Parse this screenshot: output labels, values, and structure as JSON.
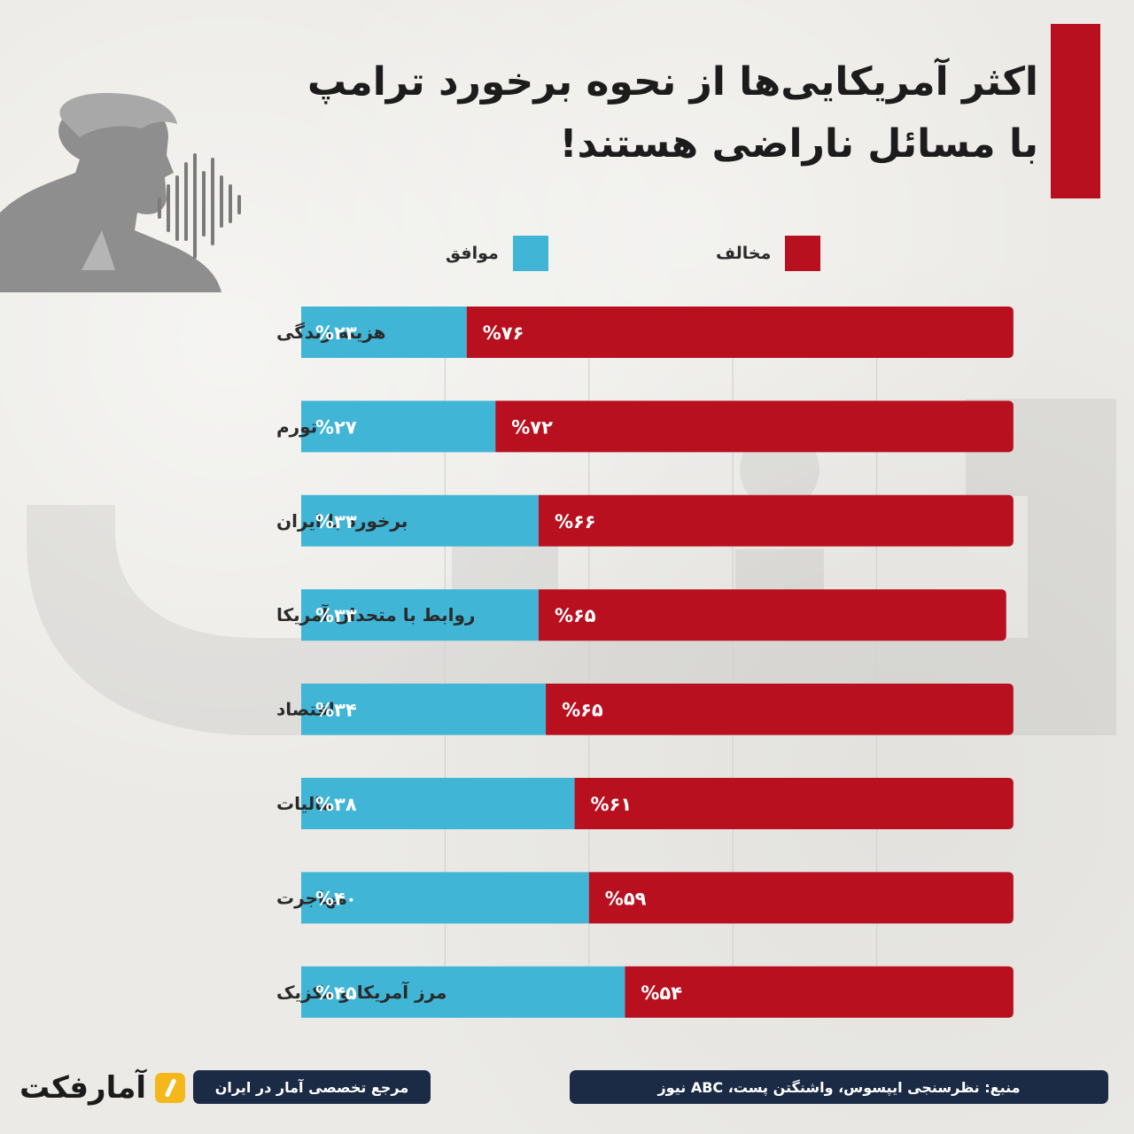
{
  "title": {
    "line1": "اکثر آمریکایی‌ها از نحوه برخورد ترامپ",
    "line2": "با مسائل ناراضی هستند!"
  },
  "legend": {
    "oppose": "مخالف",
    "agree": "موافق"
  },
  "colors": {
    "oppose": "#b8101f",
    "agree": "#40b5d6",
    "title_accent": "#b8101f",
    "footer_bg": "#1b2a45",
    "logo_badge": "#f5b81c"
  },
  "chart_data": {
    "type": "bar",
    "orientation": "horizontal",
    "stacked": true,
    "categories": [
      "هزینه زندگی",
      "تورم",
      "برخورد با ایران",
      "روابط با متحدان آمریکا",
      "اقتصاد",
      "مالیات",
      "مهاجرت",
      "مرز آمریکا و مکزیک"
    ],
    "series": [
      {
        "name": "موافق",
        "values": [
          23,
          27,
          33,
          33,
          34,
          38,
          40,
          45
        ],
        "labels": [
          "%۲۳",
          "%۲۷",
          "%۳۳",
          "%۳۳",
          "%۳۴",
          "%۳۸",
          "%۴۰",
          "%۴۵"
        ]
      },
      {
        "name": "مخالف",
        "values": [
          76,
          72,
          66,
          65,
          65,
          61,
          59,
          54
        ],
        "labels": [
          "%۷۶",
          "%۷۲",
          "%۶۶",
          "%۶۵",
          "%۶۵",
          "%۶۱",
          "%۵۹",
          "%۵۴"
        ]
      }
    ],
    "xlim": [
      0,
      100
    ],
    "grid": true,
    "legend_position": "top"
  },
  "footer": {
    "source": "منبع: نظرسنجی ایپسوس، واشنگتن پست، ABC نیوز",
    "tagline": "مرجع تخصصی آمار در ایران",
    "logo": "آمارفکت"
  }
}
